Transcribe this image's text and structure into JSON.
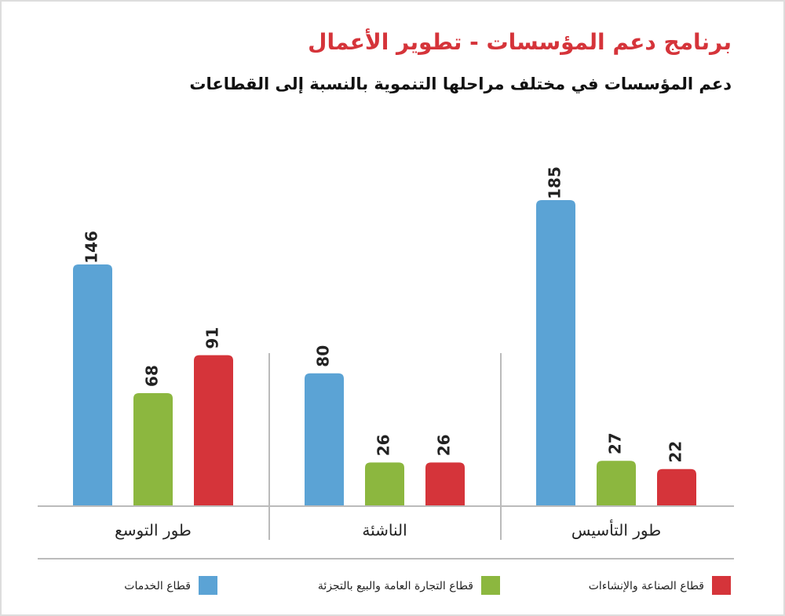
{
  "chart_data": {
    "type": "bar",
    "title": "برنامج دعم المؤسسات - تطوير الأعمال",
    "subtitle": "دعم المؤسسات في مختلف مراحلها التنموية بالنسبة إلى القطاعات",
    "categories": [
      "طور التأسيس",
      "الناشئة",
      "طور التوسع"
    ],
    "series": [
      {
        "name": "قطاع الخدمات",
        "color": "#5ba3d5",
        "values": [
          185,
          80,
          146
        ]
      },
      {
        "name": "قطاع التجارة العامة والبيع بالتجزئة",
        "color": "#8cb73f",
        "values": [
          27,
          26,
          68
        ]
      },
      {
        "name": "قطاع الصناعة والإنشاءات",
        "color": "#d5343a",
        "values": [
          22,
          26,
          91
        ]
      }
    ]
  }
}
